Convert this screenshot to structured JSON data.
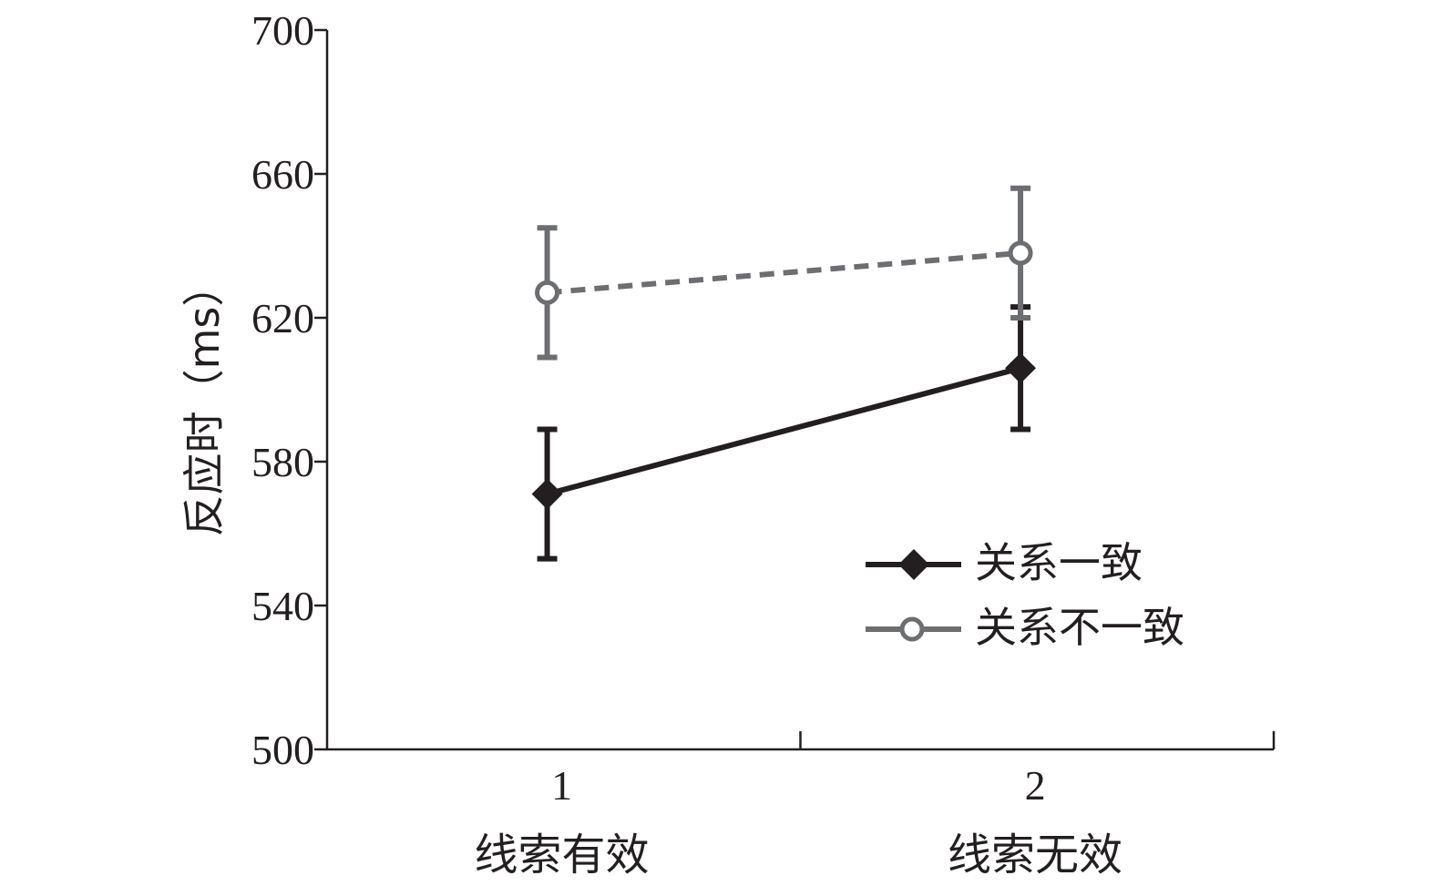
{
  "chart_data": {
    "type": "line",
    "title": "",
    "ylabel": "反应时（ms）",
    "xlabel": "",
    "ylim": [
      500,
      700
    ],
    "yticks": [
      500,
      540,
      580,
      620,
      660,
      700
    ],
    "x_ticks": [
      "1",
      "2"
    ],
    "categories": [
      "线索有效",
      "线索无效"
    ],
    "grid": false,
    "legend_position": "bottom-right",
    "series": [
      {
        "name": "关系一致",
        "values": [
          571,
          606
        ],
        "error": [
          18,
          17
        ],
        "color": "#231f20",
        "line_style": "solid",
        "marker": "diamond-filled"
      },
      {
        "name": "关系不一致",
        "values": [
          627,
          638
        ],
        "error": [
          18,
          18
        ],
        "color": "#6d6e71",
        "line_style": "dashed",
        "marker": "circle-open"
      }
    ]
  }
}
